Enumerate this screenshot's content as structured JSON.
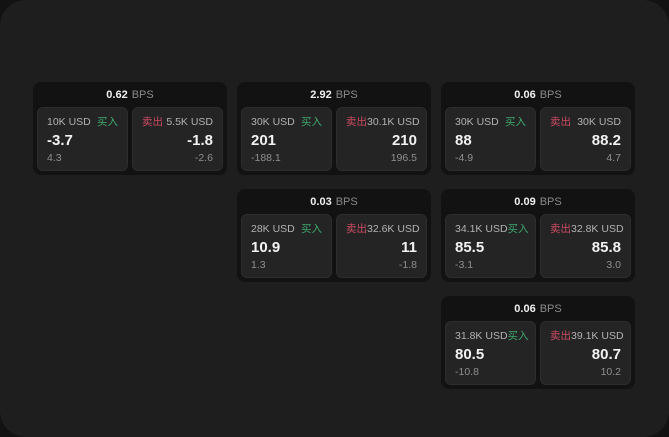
{
  "labels": {
    "bps_unit": "BPS",
    "buy": "买入",
    "sell": "卖出"
  },
  "colors": {
    "buy_green": "#3ea76e",
    "sell_red": "#cc4b61",
    "window_bg": "#1e1e1f",
    "card_bg": "#121212",
    "panel_bg": "#242425"
  },
  "cards": [
    {
      "bps": "0.62",
      "buy": {
        "size": "10K USD",
        "value": "-3.7",
        "delta": "4.3"
      },
      "sell": {
        "size": "5.5K USD",
        "value": "-1.8",
        "delta": "-2.6"
      }
    },
    {
      "bps": "2.92",
      "buy": {
        "size": "30K USD",
        "value": "201",
        "delta": "-188.1"
      },
      "sell": {
        "size": "30.1K USD",
        "value": "210",
        "delta": "196.5"
      }
    },
    {
      "bps": "0.06",
      "buy": {
        "size": "30K USD",
        "value": "88",
        "delta": "-4.9"
      },
      "sell": {
        "size": "30K USD",
        "value": "88.2",
        "delta": "4.7"
      }
    },
    {
      "bps": "0.03",
      "buy": {
        "size": "28K USD",
        "value": "10.9",
        "delta": "1.3"
      },
      "sell": {
        "size": "32.6K USD",
        "value": "11",
        "delta": "-1.8"
      }
    },
    {
      "bps": "0.09",
      "buy": {
        "size": "34.1K USD",
        "value": "85.5",
        "delta": "-3.1"
      },
      "sell": {
        "size": "32.8K USD",
        "value": "85.8",
        "delta": "3.0"
      }
    },
    {
      "bps": "0.06",
      "buy": {
        "size": "31.8K USD",
        "value": "80.5",
        "delta": "-10.8"
      },
      "sell": {
        "size": "39.1K USD",
        "value": "80.7",
        "delta": "10.2"
      }
    }
  ]
}
